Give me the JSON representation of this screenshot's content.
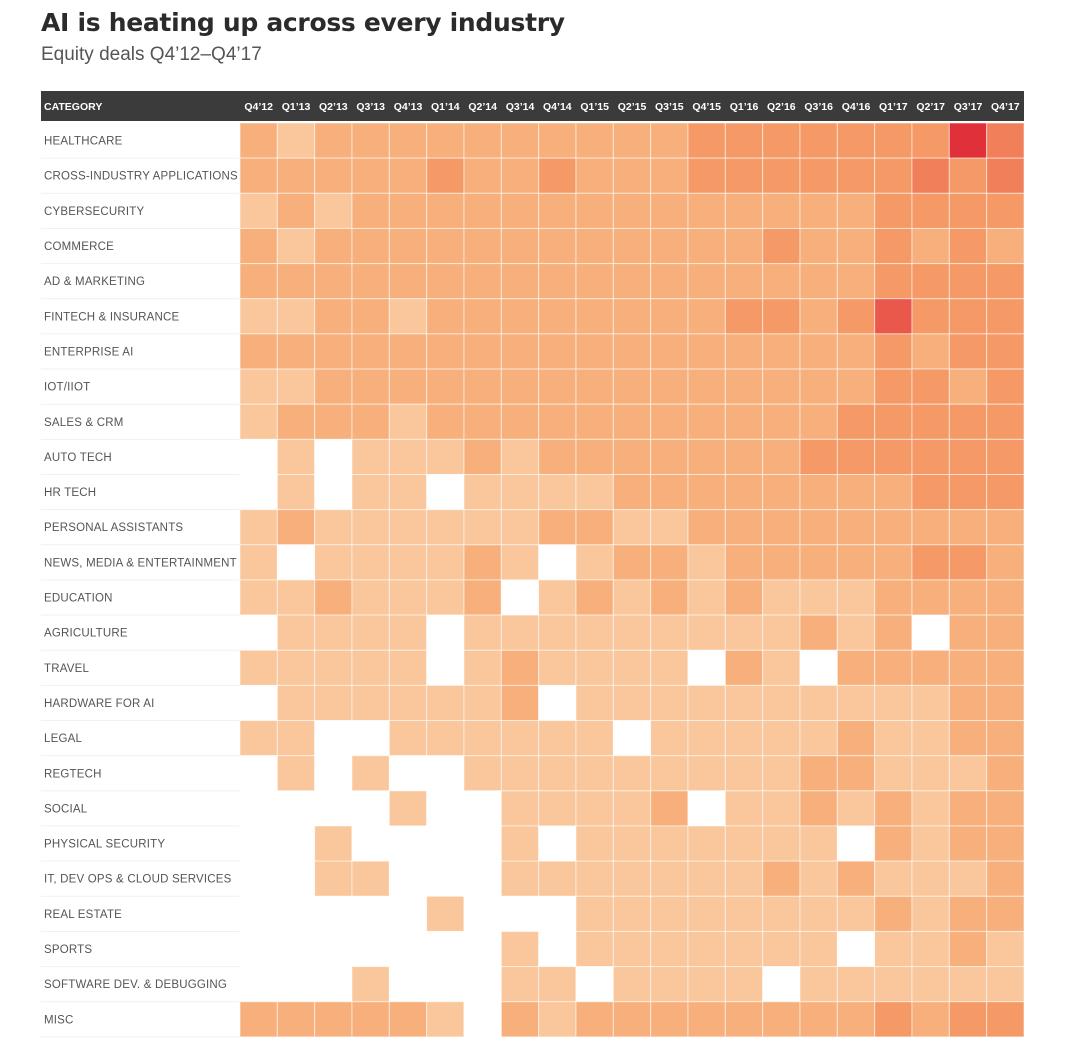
{
  "title": "AI is heating up across every industry",
  "subtitle": "Equity deals Q4’12–Q4’17",
  "palette": [
    "#ffffff",
    "#fbdcbd",
    "#f9c79b",
    "#f7b07c",
    "#f59a66",
    "#f07f5a",
    "#e9584b",
    "#e0303a"
  ],
  "chart_data": {
    "type": "heatmap",
    "title": "AI is heating up across every industry",
    "subtitle": "Equity deals Q4’12–Q4’17",
    "corner_label": "CATEGORY",
    "scale_note": "Cell values are relative deal-activity intensity levels 0–7 estimated from color shade (0 = no deals / white, 7 = darkest red)",
    "columns": [
      "Q4’12",
      "Q1’13",
      "Q2’13",
      "Q3’13",
      "Q4’13",
      "Q1’14",
      "Q2’14",
      "Q3’14",
      "Q4’14",
      "Q1’15",
      "Q2’15",
      "Q3’15",
      "Q4’15",
      "Q1’16",
      "Q2’16",
      "Q3’16",
      "Q4’16",
      "Q1’17",
      "Q2’17",
      "Q3’17",
      "Q4’17"
    ],
    "rows": [
      {
        "label": "HEALTHCARE",
        "values": [
          3,
          2,
          3,
          3,
          3,
          3,
          3,
          3,
          3,
          3,
          3,
          3,
          4,
          4,
          4,
          4,
          4,
          4,
          4,
          7,
          5
        ]
      },
      {
        "label": "CROSS-INDUSTRY APPLICATIONS",
        "values": [
          3,
          3,
          3,
          3,
          3,
          4,
          3,
          3,
          4,
          3,
          3,
          3,
          4,
          4,
          4,
          4,
          4,
          4,
          5,
          4,
          5
        ]
      },
      {
        "label": "CYBERSECURITY",
        "values": [
          2,
          3,
          2,
          3,
          3,
          3,
          3,
          3,
          3,
          3,
          3,
          3,
          3,
          3,
          3,
          3,
          3,
          4,
          4,
          4,
          4
        ]
      },
      {
        "label": "COMMERCE",
        "values": [
          3,
          2,
          3,
          3,
          3,
          3,
          3,
          3,
          3,
          3,
          3,
          3,
          3,
          3,
          4,
          3,
          3,
          4,
          3,
          4,
          3
        ]
      },
      {
        "label": "AD & MARKETING",
        "values": [
          3,
          3,
          3,
          3,
          3,
          3,
          3,
          3,
          3,
          3,
          3,
          3,
          3,
          3,
          3,
          3,
          3,
          4,
          4,
          4,
          4
        ]
      },
      {
        "label": "FINTECH & INSURANCE",
        "values": [
          2,
          2,
          3,
          3,
          2,
          3,
          3,
          3,
          3,
          3,
          3,
          3,
          3,
          4,
          4,
          3,
          4,
          6,
          4,
          4,
          4
        ]
      },
      {
        "label": "ENTERPRISE AI",
        "values": [
          3,
          3,
          3,
          3,
          3,
          3,
          3,
          3,
          3,
          3,
          3,
          3,
          3,
          3,
          3,
          3,
          3,
          4,
          3,
          4,
          4
        ]
      },
      {
        "label": "IOT/IIOT",
        "values": [
          2,
          2,
          3,
          3,
          3,
          3,
          3,
          3,
          3,
          3,
          3,
          3,
          3,
          3,
          3,
          3,
          3,
          4,
          4,
          3,
          4
        ]
      },
      {
        "label": "SALES & CRM",
        "values": [
          2,
          3,
          3,
          3,
          2,
          3,
          3,
          3,
          3,
          3,
          3,
          3,
          3,
          3,
          3,
          3,
          4,
          4,
          4,
          4,
          4
        ]
      },
      {
        "label": "AUTO TECH",
        "values": [
          0,
          2,
          0,
          2,
          2,
          2,
          3,
          2,
          3,
          3,
          3,
          3,
          3,
          3,
          3,
          4,
          4,
          4,
          4,
          4,
          4
        ]
      },
      {
        "label": "HR TECH",
        "values": [
          0,
          2,
          0,
          2,
          2,
          0,
          2,
          2,
          2,
          2,
          3,
          3,
          3,
          3,
          3,
          3,
          3,
          3,
          4,
          4,
          4
        ]
      },
      {
        "label": "PERSONAL ASSISTANTS",
        "values": [
          2,
          3,
          2,
          2,
          2,
          2,
          2,
          2,
          3,
          3,
          2,
          2,
          3,
          3,
          3,
          3,
          3,
          3,
          3,
          3,
          3
        ]
      },
      {
        "label": "NEWS, MEDIA & ENTERTAINMENT",
        "values": [
          2,
          0,
          2,
          2,
          2,
          2,
          3,
          2,
          0,
          2,
          3,
          3,
          2,
          3,
          3,
          3,
          3,
          3,
          4,
          4,
          3
        ]
      },
      {
        "label": "EDUCATION",
        "values": [
          2,
          2,
          3,
          2,
          2,
          2,
          3,
          0,
          2,
          3,
          2,
          3,
          2,
          3,
          2,
          2,
          2,
          3,
          3,
          3,
          3
        ]
      },
      {
        "label": "AGRICULTURE",
        "values": [
          0,
          2,
          2,
          2,
          2,
          0,
          2,
          2,
          2,
          2,
          2,
          2,
          2,
          2,
          2,
          3,
          2,
          3,
          0,
          3,
          3
        ]
      },
      {
        "label": "TRAVEL",
        "values": [
          2,
          2,
          2,
          2,
          2,
          0,
          2,
          3,
          2,
          2,
          2,
          2,
          0,
          3,
          2,
          0,
          3,
          3,
          3,
          3,
          3
        ]
      },
      {
        "label": "HARDWARE FOR AI",
        "values": [
          0,
          2,
          2,
          2,
          2,
          2,
          2,
          3,
          0,
          2,
          2,
          2,
          2,
          2,
          2,
          2,
          2,
          2,
          2,
          3,
          3
        ]
      },
      {
        "label": "LEGAL",
        "values": [
          2,
          2,
          0,
          0,
          2,
          2,
          2,
          2,
          2,
          2,
          0,
          2,
          2,
          2,
          2,
          2,
          3,
          2,
          2,
          3,
          3
        ]
      },
      {
        "label": "REGTECH",
        "values": [
          0,
          2,
          0,
          2,
          0,
          0,
          2,
          2,
          2,
          2,
          2,
          2,
          2,
          2,
          2,
          3,
          3,
          2,
          2,
          2,
          3
        ]
      },
      {
        "label": "SOCIAL",
        "values": [
          0,
          0,
          0,
          0,
          2,
          0,
          0,
          2,
          2,
          2,
          2,
          3,
          0,
          2,
          2,
          3,
          2,
          3,
          2,
          3,
          3
        ]
      },
      {
        "label": "PHYSICAL SECURITY",
        "values": [
          0,
          0,
          2,
          0,
          0,
          0,
          0,
          2,
          0,
          2,
          2,
          2,
          2,
          2,
          2,
          2,
          0,
          3,
          2,
          3,
          3
        ]
      },
      {
        "label": "IT, DEV OPS & CLOUD SERVICES",
        "values": [
          0,
          0,
          2,
          2,
          0,
          0,
          0,
          2,
          2,
          2,
          2,
          2,
          2,
          2,
          3,
          2,
          3,
          2,
          2,
          2,
          3
        ]
      },
      {
        "label": "REAL ESTATE",
        "values": [
          0,
          0,
          0,
          0,
          0,
          2,
          0,
          0,
          0,
          2,
          2,
          2,
          2,
          2,
          2,
          2,
          2,
          3,
          2,
          3,
          3
        ]
      },
      {
        "label": "SPORTS",
        "values": [
          0,
          0,
          0,
          0,
          0,
          0,
          0,
          2,
          0,
          2,
          2,
          2,
          2,
          2,
          2,
          2,
          0,
          2,
          2,
          3,
          2
        ]
      },
      {
        "label": "SOFTWARE DEV. & DEBUGGING",
        "values": [
          0,
          0,
          0,
          2,
          0,
          0,
          0,
          2,
          2,
          0,
          2,
          2,
          2,
          2,
          0,
          2,
          2,
          2,
          2,
          2,
          2
        ]
      },
      {
        "label": "MISC",
        "values": [
          3,
          3,
          3,
          3,
          3,
          2,
          0,
          3,
          2,
          3,
          3,
          3,
          3,
          3,
          3,
          3,
          3,
          4,
          3,
          4,
          4
        ]
      }
    ]
  }
}
